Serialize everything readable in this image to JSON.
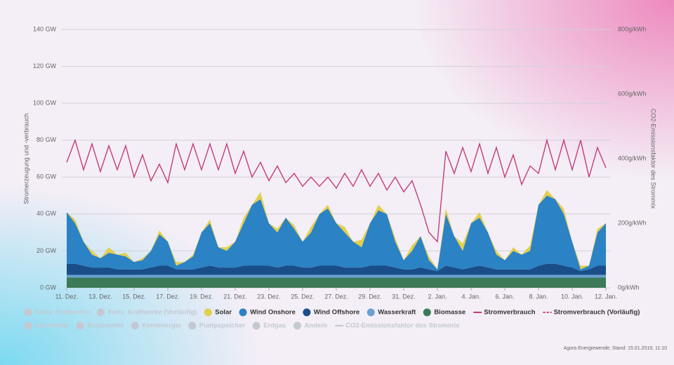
{
  "chart_data": {
    "type": "stacked_area_line",
    "y_label": "Stromerzeugung und -verbrauch",
    "y2_label": "CO2-Emissionsfaktor des Strommix",
    "source": "Agora Energiewende; Stand: 15.01.2019, 11:10",
    "xlim": [
      0,
      32
    ],
    "xticks": [
      {
        "value": 0,
        "label": "11. Dez."
      },
      {
        "value": 2,
        "label": "13. Dez."
      },
      {
        "value": 4,
        "label": "15. Dez."
      },
      {
        "value": 6,
        "label": "17. Dez."
      },
      {
        "value": 8,
        "label": "19. Dez."
      },
      {
        "value": 10,
        "label": "21. Dez."
      },
      {
        "value": 12,
        "label": "23. Dez."
      },
      {
        "value": 14,
        "label": "25. Dez."
      },
      {
        "value": 16,
        "label": "27. Dez."
      },
      {
        "value": 18,
        "label": "29. Dez."
      },
      {
        "value": 20,
        "label": "31. Dez."
      },
      {
        "value": 22,
        "label": "2. Jan."
      },
      {
        "value": 24,
        "label": "4. Jan."
      },
      {
        "value": 26,
        "label": "6. Jan."
      },
      {
        "value": 28,
        "label": "8. Jan."
      },
      {
        "value": 30,
        "label": "10. Jan."
      },
      {
        "value": 32,
        "label": "12. Jan."
      }
    ],
    "ylim": [
      0,
      140
    ],
    "yticks": [
      {
        "value": 0,
        "label": "0 GW"
      },
      {
        "value": 20,
        "label": "20 GW"
      },
      {
        "value": 40,
        "label": "40 GW"
      },
      {
        "value": 60,
        "label": "60 GW"
      },
      {
        "value": 80,
        "label": "80 GW"
      },
      {
        "value": 100,
        "label": "100 GW"
      },
      {
        "value": 120,
        "label": "120 GW"
      },
      {
        "value": 140,
        "label": "140 GW"
      }
    ],
    "y2lim": [
      0,
      800
    ],
    "y2ticks": [
      {
        "value": 0,
        "label": "0g/kWh"
      },
      {
        "value": 200,
        "label": "200g/kWh"
      },
      {
        "value": 400,
        "label": "400g/kWh"
      },
      {
        "value": 600,
        "label": "600g/kWh"
      },
      {
        "value": 800,
        "label": "800g/kWh"
      }
    ],
    "grid": true,
    "x": [
      0,
      0.5,
      1,
      1.5,
      2,
      2.5,
      3,
      3.5,
      4,
      4.5,
      5,
      5.5,
      6,
      6.5,
      7,
      7.5,
      8,
      8.5,
      9,
      9.5,
      10,
      10.5,
      11,
      11.5,
      12,
      12.5,
      13,
      13.5,
      14,
      14.5,
      15,
      15.5,
      16,
      16.5,
      17,
      17.5,
      18,
      18.5,
      19,
      19.5,
      20,
      20.5,
      21,
      21.5,
      22,
      22.5,
      23,
      23.5,
      24,
      24.5,
      25,
      25.5,
      26,
      26.5,
      27,
      27.5,
      28,
      28.5,
      29,
      29.5,
      30,
      30.5,
      31,
      31.5,
      32
    ],
    "legend_inactive": [
      "Konv. Kraftwerke",
      "Konv. Kraftwerke (Vorläufig)",
      "Steinkohle",
      "Braunkohle",
      "Kernenergie",
      "Pumpspeicher",
      "Erdgas",
      "Andere",
      "CO2-Emissionsfaktor des Strommix"
    ],
    "series": [
      {
        "name": "Solar",
        "color": "#e2cf4c",
        "kind": "area",
        "values": [
          0,
          2,
          0,
          2,
          0,
          3,
          0,
          2,
          0,
          1,
          0,
          2,
          0,
          2,
          0,
          1,
          0,
          2,
          0,
          2,
          0,
          3,
          0,
          4,
          0,
          2,
          0,
          2,
          0,
          3,
          0,
          2,
          0,
          3,
          0,
          4,
          0,
          3,
          0,
          2,
          0,
          3,
          0,
          2,
          0,
          3,
          0,
          4,
          0,
          3,
          0,
          2,
          0,
          2,
          0,
          3,
          0,
          3,
          0,
          3,
          0,
          2,
          0,
          2,
          0
        ]
      },
      {
        "name": "Wind Onshore",
        "color": "#2b82c4",
        "kind": "area",
        "values": [
          28,
          22,
          13,
          7,
          5,
          8,
          8,
          7,
          4,
          5,
          9,
          17,
          13,
          2,
          4,
          7,
          19,
          23,
          11,
          9,
          14,
          23,
          33,
          36,
          23,
          19,
          26,
          20,
          14,
          19,
          28,
          31,
          23,
          19,
          14,
          11,
          23,
          30,
          28,
          14,
          5,
          10,
          17,
          5,
          1,
          28,
          17,
          10,
          24,
          26,
          19,
          8,
          5,
          10,
          8,
          10,
          33,
          37,
          35,
          28,
          14,
          1,
          2,
          18,
          23
        ]
      },
      {
        "name": "Wind Offshore",
        "color": "#1a4e88",
        "kind": "area",
        "values": [
          6,
          6,
          5,
          4,
          4,
          4,
          3,
          3,
          3,
          3,
          4,
          5,
          5,
          3,
          3,
          3,
          4,
          5,
          4,
          4,
          4,
          5,
          5,
          5,
          5,
          4,
          5,
          5,
          4,
          4,
          5,
          5,
          5,
          4,
          4,
          4,
          5,
          5,
          5,
          4,
          3,
          3,
          4,
          3,
          2,
          5,
          4,
          3,
          4,
          5,
          4,
          3,
          3,
          3,
          3,
          3,
          5,
          6,
          6,
          5,
          4,
          2,
          3,
          5,
          5
        ]
      },
      {
        "name": "Wasserkraft",
        "color": "#6aa1d4",
        "kind": "area",
        "values": [
          1.5,
          1.5,
          1.5,
          1.5,
          1.5,
          1.5,
          1.5,
          1.5,
          1.5,
          1.5,
          1.5,
          1.5,
          1.5,
          1.5,
          1.5,
          1.5,
          1.5,
          1.5,
          1.5,
          1.5,
          1.5,
          1.5,
          1.5,
          1.5,
          1.5,
          1.5,
          1.5,
          1.5,
          1.5,
          1.5,
          1.5,
          1.5,
          1.5,
          1.5,
          1.5,
          1.5,
          1.5,
          1.5,
          1.5,
          1.5,
          1.5,
          1.5,
          1.5,
          1.5,
          1.5,
          1.5,
          1.5,
          1.5,
          1.5,
          1.5,
          1.5,
          1.5,
          1.5,
          1.5,
          1.5,
          1.5,
          1.5,
          1.5,
          1.5,
          1.5,
          1.5,
          1.5,
          1.5,
          1.5,
          1.5
        ]
      },
      {
        "name": "Biomasse",
        "color": "#3c7a58",
        "kind": "area",
        "values": [
          5.5,
          5.5,
          5.5,
          5.5,
          5.5,
          5.5,
          5.5,
          5.5,
          5.5,
          5.5,
          5.5,
          5.5,
          5.5,
          5.5,
          5.5,
          5.5,
          5.5,
          5.5,
          5.5,
          5.5,
          5.5,
          5.5,
          5.5,
          5.5,
          5.5,
          5.5,
          5.5,
          5.5,
          5.5,
          5.5,
          5.5,
          5.5,
          5.5,
          5.5,
          5.5,
          5.5,
          5.5,
          5.5,
          5.5,
          5.5,
          5.5,
          5.5,
          5.5,
          5.5,
          5.5,
          5.5,
          5.5,
          5.5,
          5.5,
          5.5,
          5.5,
          5.5,
          5.5,
          5.5,
          5.5,
          5.5,
          5.5,
          5.5,
          5.5,
          5.5,
          5.5,
          5.5,
          5.5,
          5.5,
          5.5
        ]
      },
      {
        "name": "Stromverbrauch",
        "color": "#c33d7b",
        "kind": "line",
        "values": [
          68,
          80,
          64,
          78,
          63,
          77,
          64,
          77,
          60,
          72,
          58,
          67,
          57,
          78,
          64,
          78,
          64,
          78,
          64,
          78,
          62,
          74,
          60,
          68,
          58,
          66,
          57,
          62,
          55,
          60,
          55,
          60,
          54,
          62,
          55,
          64,
          55,
          62,
          53,
          60,
          52,
          58,
          45,
          30,
          25,
          74,
          62,
          76,
          63,
          78,
          62,
          76,
          60,
          72,
          56,
          66,
          62,
          80,
          64,
          80,
          64,
          80,
          60,
          76,
          65
        ]
      },
      {
        "name": "Stromverbrauch (Vorläufig)",
        "color": "#c33d7b",
        "kind": "dashed-line"
      }
    ]
  }
}
